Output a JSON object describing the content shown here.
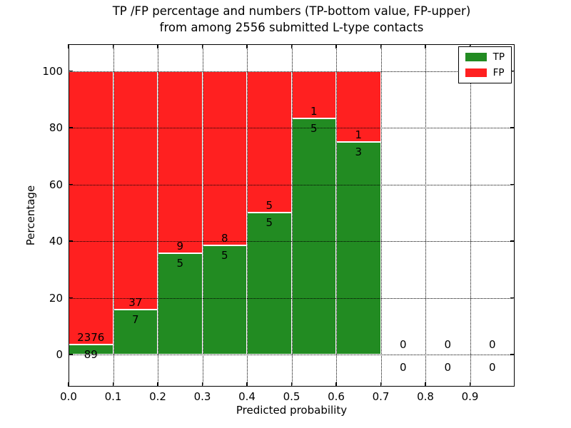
{
  "chart_data": {
    "type": "bar",
    "subtype": "stacked-percentage-histogram",
    "title_line1": "TP /FP percentage and numbers (TP-bottom value, FP-upper)",
    "title_line2": "from among 2556 submitted L-type contacts",
    "xlabel": "Predicted probability",
    "ylabel": "Percentage",
    "x_tick_labels": [
      "0.0",
      "0.1",
      "0.2",
      "0.3",
      "0.4",
      "0.5",
      "0.6",
      "0.7",
      "0.8",
      "0.9"
    ],
    "y_tick_values": [
      0,
      20,
      40,
      60,
      80,
      100
    ],
    "xlim": [
      0.0,
      1.0
    ],
    "ylim": [
      -11.3,
      109.5
    ],
    "grid": "dotted-both-axes-drawn-over-bars",
    "total_contacts": 2556,
    "categories": [
      "0.0-0.1",
      "0.1-0.2",
      "0.2-0.3",
      "0.3-0.4",
      "0.4-0.5",
      "0.5-0.6",
      "0.6-0.7",
      "0.7-0.8",
      "0.8-0.9",
      "0.9-1.0"
    ],
    "bins": [
      {
        "x0": 0.0,
        "x1": 0.1,
        "tp": 89,
        "fp": 2376,
        "tp_pct": 3.6
      },
      {
        "x0": 0.1,
        "x1": 0.2,
        "tp": 7,
        "fp": 37,
        "tp_pct": 15.9
      },
      {
        "x0": 0.2,
        "x1": 0.3,
        "tp": 5,
        "fp": 9,
        "tp_pct": 35.7
      },
      {
        "x0": 0.3,
        "x1": 0.4,
        "tp": 5,
        "fp": 8,
        "tp_pct": 38.5
      },
      {
        "x0": 0.4,
        "x1": 0.5,
        "tp": 5,
        "fp": 5,
        "tp_pct": 50.0
      },
      {
        "x0": 0.5,
        "x1": 0.6,
        "tp": 5,
        "fp": 1,
        "tp_pct": 83.3
      },
      {
        "x0": 0.6,
        "x1": 0.7,
        "tp": 3,
        "fp": 1,
        "tp_pct": 75.0
      },
      {
        "x0": 0.7,
        "x1": 0.8,
        "tp": 0,
        "fp": 0,
        "tp_pct": null
      },
      {
        "x0": 0.8,
        "x1": 0.9,
        "tp": 0,
        "fp": 0,
        "tp_pct": null
      },
      {
        "x0": 0.9,
        "x1": 1.0,
        "tp": 0,
        "fp": 0,
        "tp_pct": null
      }
    ],
    "series": [
      {
        "name": "TP",
        "color": "#228b22"
      },
      {
        "name": "FP",
        "color": "#ff2020"
      }
    ],
    "legend": {
      "position": "upper-right",
      "entries": [
        {
          "label": "TP",
          "color": "#228b22"
        },
        {
          "label": "FP",
          "color": "#ff2020"
        }
      ]
    },
    "colors": {
      "tp": "#228b22",
      "fp": "#ff2020",
      "bar_edge": "#ffffff",
      "grid": "#000000",
      "text": "#000000",
      "background": "#ffffff"
    }
  }
}
